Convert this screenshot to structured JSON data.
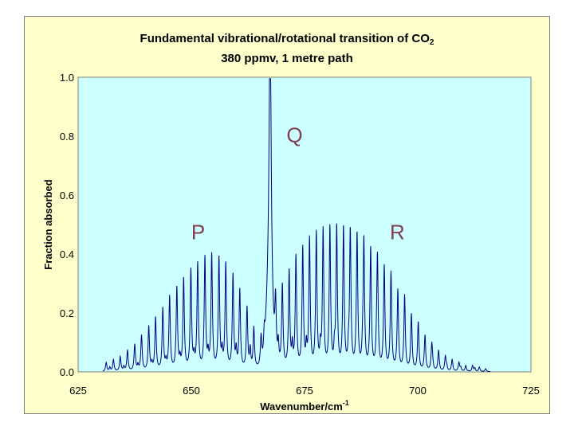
{
  "chart_data": {
    "type": "line",
    "title": "Fundamental vibrational/rotational transition of CO",
    "title_subscript": "2",
    "subtitle": "380 ppmv, 1 metre path",
    "xlabel": "Wavenumber/cm",
    "xlabel_superscript": "-1",
    "ylabel": "Fraction absorbed",
    "xlim": [
      625,
      725
    ],
    "ylim": [
      0,
      1.0
    ],
    "x_ticks": [
      625,
      650,
      675,
      700,
      725
    ],
    "y_ticks": [
      "0.0",
      "0.2",
      "0.4",
      "0.6",
      "0.8",
      "1.0"
    ],
    "grid": false,
    "plot_background": "#ccffff",
    "frame_background": "#ffffcc",
    "line_color": "#000080",
    "band_labels": [
      {
        "text": "P",
        "x": 651.5,
        "y": 0.45
      },
      {
        "text": "Q",
        "x": 672.8,
        "y": 0.78
      },
      {
        "text": "R",
        "x": 695.5,
        "y": 0.45
      }
    ],
    "q_branch": {
      "x": 667.4,
      "y": 0.98
    },
    "p_branch": {
      "x": [
        631.2,
        632.8,
        634.3,
        635.9,
        637.5,
        639.0,
        640.6,
        642.1,
        643.7,
        645.2,
        646.8,
        648.3,
        649.9,
        651.4,
        653.0,
        654.5,
        656.1,
        657.6,
        659.2,
        660.7,
        662.3,
        663.8,
        665.4
      ],
      "y": [
        0.03,
        0.04,
        0.05,
        0.07,
        0.09,
        0.12,
        0.15,
        0.18,
        0.21,
        0.25,
        0.28,
        0.31,
        0.34,
        0.36,
        0.38,
        0.39,
        0.38,
        0.36,
        0.32,
        0.27,
        0.21,
        0.14,
        0.1
      ]
    },
    "r_branch": {
      "x": [
        668.6,
        670.1,
        671.6,
        673.1,
        674.6,
        676.1,
        677.6,
        679.1,
        680.6,
        682.1,
        683.6,
        685.1,
        686.6,
        688.1,
        689.6,
        691.1,
        692.6,
        694.1,
        695.6,
        697.1,
        698.6,
        700.1,
        701.6,
        703.1,
        704.6,
        706.1,
        707.6,
        709.1,
        710.6,
        712.1,
        713.6,
        715.0
      ],
      "y": [
        0.2,
        0.28,
        0.33,
        0.38,
        0.41,
        0.44,
        0.46,
        0.47,
        0.48,
        0.48,
        0.48,
        0.47,
        0.46,
        0.44,
        0.41,
        0.38,
        0.35,
        0.31,
        0.27,
        0.23,
        0.19,
        0.15,
        0.12,
        0.09,
        0.07,
        0.05,
        0.04,
        0.03,
        0.02,
        0.02,
        0.015,
        0.01
      ]
    }
  }
}
